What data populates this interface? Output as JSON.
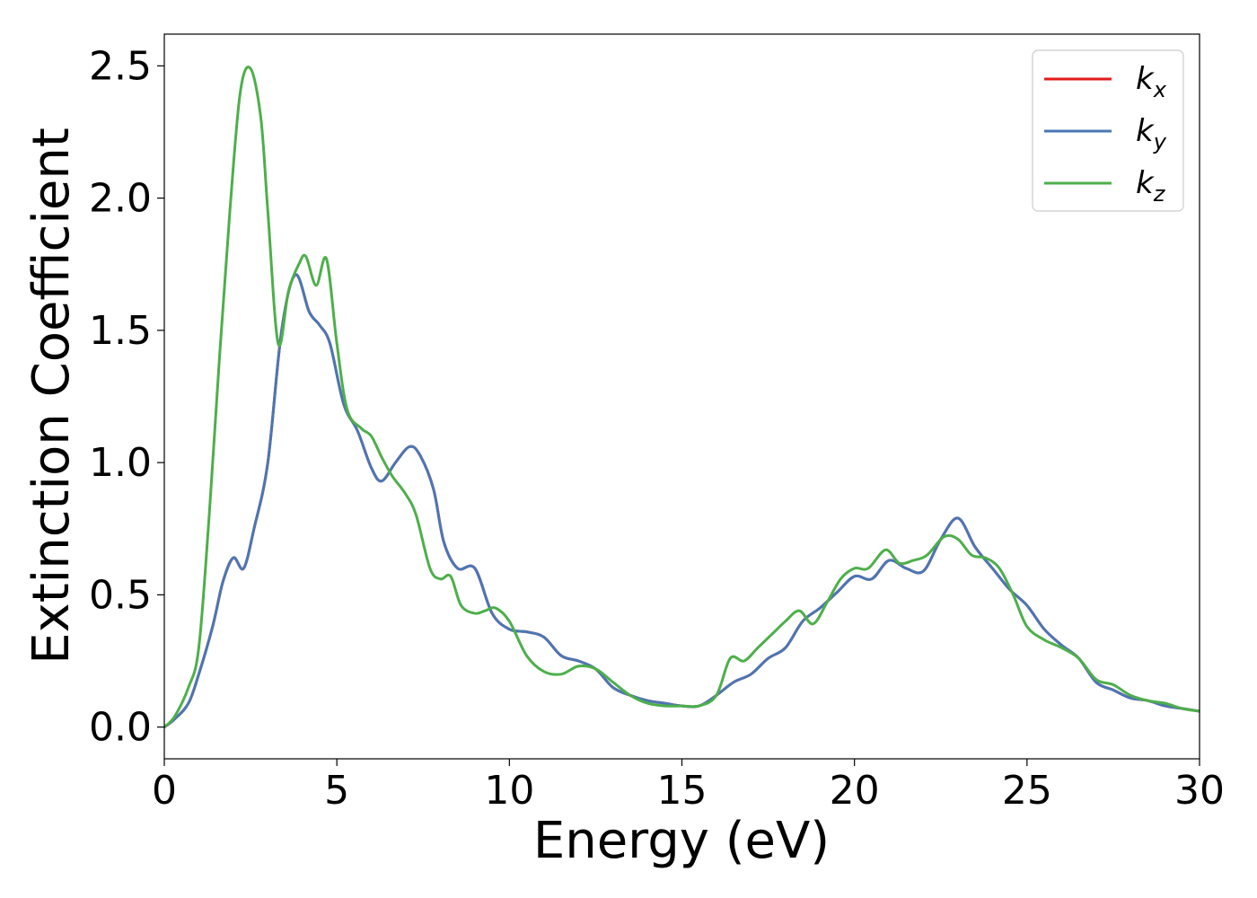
{
  "chart_data": {
    "type": "line",
    "title": "",
    "xlabel": "Energy (eV)",
    "ylabel": "Extinction Coefficient",
    "xlim": [
      0,
      30
    ],
    "ylim": [
      -0.12,
      2.62
    ],
    "xticks": [
      0,
      5,
      10,
      15,
      20,
      25,
      30
    ],
    "xtick_labels": [
      "0",
      "5",
      "10",
      "15",
      "20",
      "25",
      "30"
    ],
    "yticks": [
      0.0,
      0.5,
      1.0,
      1.5,
      2.0,
      2.5
    ],
    "ytick_labels": [
      "0.0",
      "0.5",
      "1.0",
      "1.5",
      "2.0",
      "2.5"
    ],
    "grid": false,
    "legend_position": "top-right",
    "series": [
      {
        "name": "k",
        "subscript": "x",
        "color": "#e41a1c",
        "x": [
          0,
          0.3,
          0.7,
          1.0,
          1.4,
          1.7,
          2.0,
          2.3,
          2.6,
          3.0,
          3.4,
          3.8,
          4.2,
          4.5,
          4.8,
          5.2,
          5.6,
          6.0,
          6.3,
          6.7,
          7.1,
          7.4,
          7.8,
          8.1,
          8.5,
          9.0,
          9.5,
          10.0,
          10.5,
          11.0,
          11.5,
          12.0,
          12.5,
          13.0,
          13.5,
          14.0,
          14.5,
          15.0,
          15.5,
          16.0,
          16.5,
          17.0,
          17.5,
          18.0,
          18.5,
          19.0,
          19.5,
          20.0,
          20.5,
          21.0,
          21.5,
          22.0,
          22.5,
          23.0,
          23.5,
          24.0,
          24.5,
          25.0,
          25.5,
          26.0,
          26.5,
          27.0,
          27.5,
          28.0,
          28.5,
          29.0,
          29.5,
          30.0
        ],
        "y": [
          0.0,
          0.03,
          0.09,
          0.2,
          0.38,
          0.55,
          0.64,
          0.6,
          0.75,
          1.0,
          1.5,
          1.71,
          1.57,
          1.52,
          1.45,
          1.22,
          1.12,
          0.98,
          0.93,
          1.0,
          1.06,
          1.03,
          0.9,
          0.7,
          0.6,
          0.6,
          0.43,
          0.37,
          0.36,
          0.34,
          0.27,
          0.25,
          0.22,
          0.15,
          0.12,
          0.1,
          0.09,
          0.08,
          0.08,
          0.12,
          0.17,
          0.2,
          0.26,
          0.3,
          0.4,
          0.45,
          0.51,
          0.57,
          0.56,
          0.63,
          0.6,
          0.59,
          0.71,
          0.79,
          0.68,
          0.6,
          0.52,
          0.46,
          0.37,
          0.31,
          0.26,
          0.17,
          0.14,
          0.11,
          0.1,
          0.08,
          0.07,
          0.06
        ]
      },
      {
        "name": "k",
        "subscript": "y",
        "color": "#4a77b4",
        "x": [
          0,
          0.3,
          0.7,
          1.0,
          1.4,
          1.7,
          2.0,
          2.3,
          2.6,
          3.0,
          3.4,
          3.8,
          4.2,
          4.5,
          4.8,
          5.2,
          5.6,
          6.0,
          6.3,
          6.7,
          7.1,
          7.4,
          7.8,
          8.1,
          8.5,
          9.0,
          9.5,
          10.0,
          10.5,
          11.0,
          11.5,
          12.0,
          12.5,
          13.0,
          13.5,
          14.0,
          14.5,
          15.0,
          15.5,
          16.0,
          16.5,
          17.0,
          17.5,
          18.0,
          18.5,
          19.0,
          19.5,
          20.0,
          20.5,
          21.0,
          21.5,
          22.0,
          22.5,
          23.0,
          23.5,
          24.0,
          24.5,
          25.0,
          25.5,
          26.0,
          26.5,
          27.0,
          27.5,
          28.0,
          28.5,
          29.0,
          29.5,
          30.0
        ],
        "y": [
          0.0,
          0.03,
          0.09,
          0.2,
          0.38,
          0.55,
          0.64,
          0.6,
          0.75,
          1.0,
          1.5,
          1.71,
          1.57,
          1.52,
          1.45,
          1.22,
          1.12,
          0.98,
          0.93,
          1.0,
          1.06,
          1.03,
          0.9,
          0.7,
          0.6,
          0.6,
          0.43,
          0.37,
          0.36,
          0.34,
          0.27,
          0.25,
          0.22,
          0.15,
          0.12,
          0.1,
          0.09,
          0.08,
          0.08,
          0.12,
          0.17,
          0.2,
          0.26,
          0.3,
          0.4,
          0.45,
          0.51,
          0.57,
          0.56,
          0.63,
          0.6,
          0.59,
          0.71,
          0.79,
          0.68,
          0.6,
          0.52,
          0.46,
          0.37,
          0.31,
          0.26,
          0.17,
          0.14,
          0.11,
          0.1,
          0.08,
          0.07,
          0.06
        ]
      },
      {
        "name": "k",
        "subscript": "z",
        "color": "#4daf4a",
        "x": [
          0,
          0.3,
          0.7,
          1.0,
          1.3,
          1.6,
          1.9,
          2.2,
          2.5,
          2.8,
          3.0,
          3.3,
          3.6,
          3.9,
          4.1,
          4.4,
          4.7,
          5.0,
          5.3,
          5.7,
          6.0,
          6.3,
          6.6,
          7.0,
          7.3,
          7.7,
          8.0,
          8.3,
          8.6,
          9.0,
          9.3,
          9.6,
          10.0,
          10.5,
          11.0,
          11.5,
          12.0,
          12.5,
          13.0,
          13.5,
          14.0,
          14.5,
          15.0,
          15.5,
          16.0,
          16.4,
          16.8,
          17.2,
          17.6,
          18.0,
          18.4,
          18.8,
          19.2,
          19.6,
          20.0,
          20.4,
          20.9,
          21.3,
          21.7,
          22.1,
          22.6,
          23.0,
          23.4,
          23.8,
          24.2,
          24.6,
          25.0,
          25.5,
          26.0,
          26.5,
          27.0,
          27.5,
          28.0,
          28.5,
          29.0,
          29.5,
          30.0
        ],
        "y": [
          0.0,
          0.04,
          0.15,
          0.3,
          0.8,
          1.4,
          1.95,
          2.4,
          2.49,
          2.3,
          1.95,
          1.45,
          1.65,
          1.75,
          1.78,
          1.67,
          1.77,
          1.45,
          1.2,
          1.13,
          1.1,
          1.02,
          0.95,
          0.88,
          0.8,
          0.6,
          0.56,
          0.57,
          0.46,
          0.43,
          0.44,
          0.45,
          0.4,
          0.27,
          0.21,
          0.2,
          0.23,
          0.22,
          0.17,
          0.12,
          0.09,
          0.08,
          0.08,
          0.08,
          0.12,
          0.26,
          0.25,
          0.3,
          0.35,
          0.4,
          0.44,
          0.39,
          0.47,
          0.56,
          0.6,
          0.6,
          0.67,
          0.62,
          0.63,
          0.65,
          0.72,
          0.71,
          0.65,
          0.64,
          0.6,
          0.5,
          0.38,
          0.33,
          0.3,
          0.26,
          0.18,
          0.16,
          0.12,
          0.1,
          0.09,
          0.07,
          0.06
        ]
      }
    ]
  }
}
